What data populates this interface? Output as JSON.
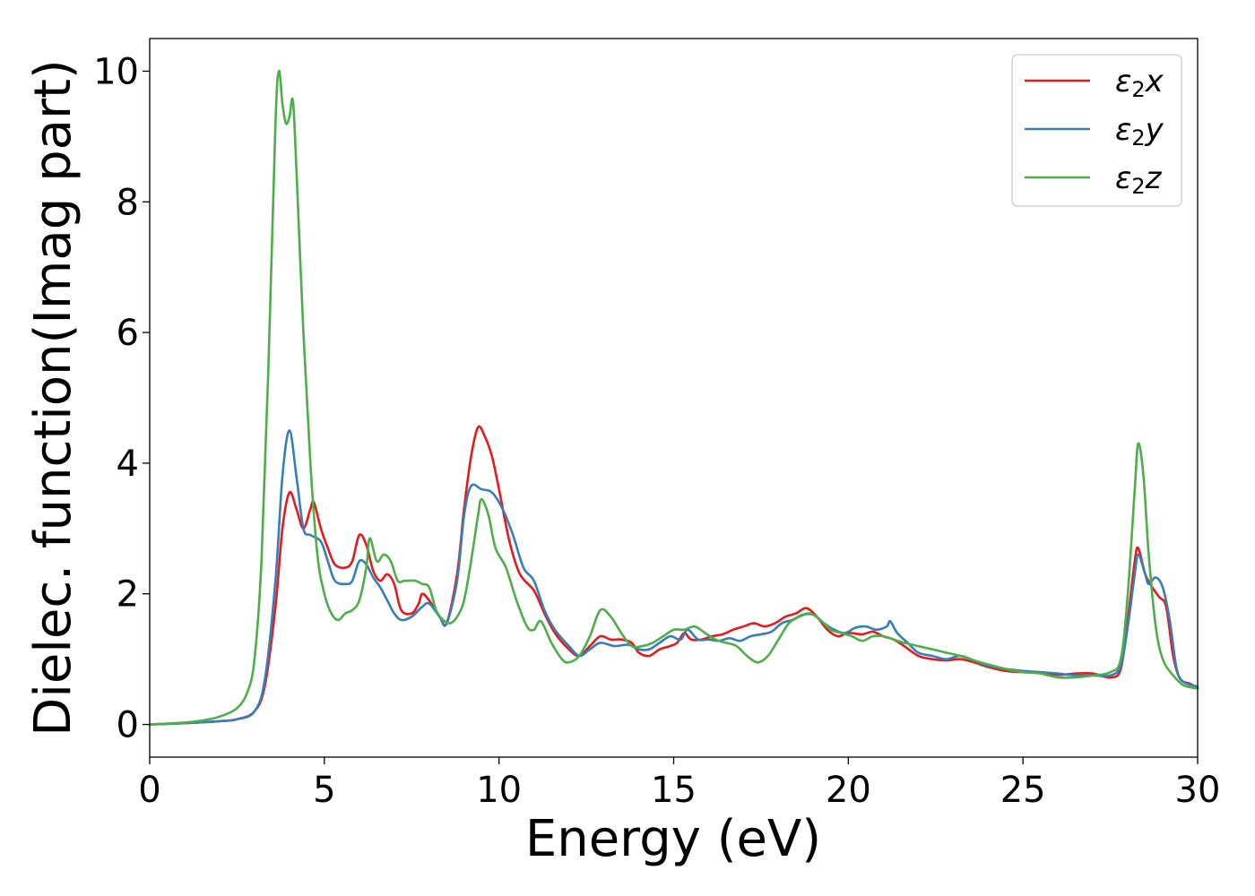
{
  "chart_data": {
    "type": "line",
    "xlabel": "Energy (eV)",
    "ylabel": "Dielec. function(Imag part)",
    "xlim": [
      0,
      30
    ],
    "ylim": [
      -0.5,
      10.5
    ],
    "xticks": [
      "0",
      "5",
      "10",
      "15",
      "20",
      "25",
      "30"
    ],
    "yticks": [
      "0",
      "2",
      "4",
      "6",
      "8",
      "10"
    ],
    "grid": false,
    "legend_position": "top-right",
    "series": [
      {
        "name": "ε₂x",
        "legend_base": "ε",
        "legend_sub": "2",
        "legend_suffix": "x",
        "color": "#e41a1c",
        "points": [
          [
            0,
            0
          ],
          [
            1,
            0.02
          ],
          [
            2,
            0.05
          ],
          [
            2.5,
            0.08
          ],
          [
            3,
            0.2
          ],
          [
            3.3,
            0.6
          ],
          [
            3.6,
            1.8
          ],
          [
            3.8,
            3.0
          ],
          [
            4.0,
            3.55
          ],
          [
            4.2,
            3.3
          ],
          [
            4.4,
            3.0
          ],
          [
            4.6,
            3.3
          ],
          [
            4.7,
            3.4
          ],
          [
            4.9,
            3.0
          ],
          [
            5.1,
            2.7
          ],
          [
            5.3,
            2.45
          ],
          [
            5.6,
            2.4
          ],
          [
            5.8,
            2.5
          ],
          [
            6.0,
            2.9
          ],
          [
            6.2,
            2.75
          ],
          [
            6.4,
            2.35
          ],
          [
            6.6,
            2.2
          ],
          [
            6.8,
            2.3
          ],
          [
            7.0,
            2.15
          ],
          [
            7.2,
            1.75
          ],
          [
            7.5,
            1.7
          ],
          [
            7.7,
            1.85
          ],
          [
            7.8,
            2.0
          ],
          [
            8.0,
            1.9
          ],
          [
            8.3,
            1.65
          ],
          [
            8.5,
            1.55
          ],
          [
            8.8,
            2.3
          ],
          [
            9.0,
            3.3
          ],
          [
            9.2,
            4.1
          ],
          [
            9.4,
            4.55
          ],
          [
            9.6,
            4.4
          ],
          [
            9.8,
            4.1
          ],
          [
            10.0,
            3.6
          ],
          [
            10.3,
            2.8
          ],
          [
            10.6,
            2.3
          ],
          [
            11.0,
            2.05
          ],
          [
            11.3,
            1.7
          ],
          [
            11.6,
            1.4
          ],
          [
            12.0,
            1.15
          ],
          [
            12.3,
            1.05
          ],
          [
            12.6,
            1.2
          ],
          [
            12.9,
            1.35
          ],
          [
            13.2,
            1.3
          ],
          [
            13.5,
            1.3
          ],
          [
            13.8,
            1.25
          ],
          [
            14.0,
            1.1
          ],
          [
            14.3,
            1.05
          ],
          [
            14.6,
            1.15
          ],
          [
            14.9,
            1.2
          ],
          [
            15.1,
            1.25
          ],
          [
            15.3,
            1.4
          ],
          [
            15.5,
            1.3
          ],
          [
            15.8,
            1.3
          ],
          [
            16.1,
            1.35
          ],
          [
            16.4,
            1.38
          ],
          [
            16.7,
            1.45
          ],
          [
            17.0,
            1.5
          ],
          [
            17.3,
            1.55
          ],
          [
            17.6,
            1.5
          ],
          [
            17.9,
            1.55
          ],
          [
            18.2,
            1.65
          ],
          [
            18.5,
            1.7
          ],
          [
            18.8,
            1.78
          ],
          [
            19.1,
            1.65
          ],
          [
            19.4,
            1.45
          ],
          [
            19.7,
            1.35
          ],
          [
            20.0,
            1.4
          ],
          [
            20.4,
            1.38
          ],
          [
            20.7,
            1.42
          ],
          [
            21.0,
            1.35
          ],
          [
            21.3,
            1.3
          ],
          [
            21.6,
            1.2
          ],
          [
            22.0,
            1.05
          ],
          [
            22.4,
            1.0
          ],
          [
            22.8,
            0.98
          ],
          [
            23.2,
            1.0
          ],
          [
            23.6,
            0.95
          ],
          [
            24.0,
            0.88
          ],
          [
            24.5,
            0.82
          ],
          [
            25.0,
            0.8
          ],
          [
            25.5,
            0.8
          ],
          [
            26.0,
            0.76
          ],
          [
            26.5,
            0.78
          ],
          [
            27.0,
            0.78
          ],
          [
            27.5,
            0.72
          ],
          [
            27.8,
            0.85
          ],
          [
            28.0,
            1.6
          ],
          [
            28.2,
            2.5
          ],
          [
            28.3,
            2.7
          ],
          [
            28.5,
            2.3
          ],
          [
            28.7,
            2.1
          ],
          [
            28.9,
            1.95
          ],
          [
            29.1,
            1.8
          ],
          [
            29.3,
            1.05
          ],
          [
            29.5,
            0.7
          ],
          [
            29.8,
            0.62
          ],
          [
            30.0,
            0.55
          ]
        ]
      },
      {
        "name": "ε₂y",
        "legend_base": "ε",
        "legend_sub": "2",
        "legend_suffix": "y",
        "color": "#377eb8",
        "points": [
          [
            0,
            0
          ],
          [
            1,
            0.02
          ],
          [
            2,
            0.05
          ],
          [
            2.5,
            0.08
          ],
          [
            3,
            0.2
          ],
          [
            3.3,
            0.7
          ],
          [
            3.6,
            2.2
          ],
          [
            3.8,
            3.8
          ],
          [
            4.0,
            4.5
          ],
          [
            4.2,
            3.8
          ],
          [
            4.4,
            3.0
          ],
          [
            4.6,
            2.9
          ],
          [
            4.9,
            2.8
          ],
          [
            5.1,
            2.5
          ],
          [
            5.3,
            2.2
          ],
          [
            5.6,
            2.15
          ],
          [
            5.8,
            2.2
          ],
          [
            6.0,
            2.5
          ],
          [
            6.2,
            2.45
          ],
          [
            6.4,
            2.25
          ],
          [
            6.6,
            2.1
          ],
          [
            6.8,
            1.9
          ],
          [
            7.0,
            1.7
          ],
          [
            7.2,
            1.6
          ],
          [
            7.5,
            1.65
          ],
          [
            7.8,
            1.8
          ],
          [
            8.0,
            1.85
          ],
          [
            8.3,
            1.65
          ],
          [
            8.5,
            1.55
          ],
          [
            8.8,
            2.2
          ],
          [
            9.0,
            3.2
          ],
          [
            9.2,
            3.65
          ],
          [
            9.5,
            3.6
          ],
          [
            9.8,
            3.55
          ],
          [
            10.1,
            3.3
          ],
          [
            10.4,
            2.9
          ],
          [
            10.7,
            2.4
          ],
          [
            11.0,
            2.2
          ],
          [
            11.3,
            1.75
          ],
          [
            11.6,
            1.45
          ],
          [
            12.0,
            1.2
          ],
          [
            12.3,
            1.05
          ],
          [
            12.6,
            1.15
          ],
          [
            12.9,
            1.25
          ],
          [
            13.3,
            1.2
          ],
          [
            13.7,
            1.22
          ],
          [
            14.0,
            1.15
          ],
          [
            14.3,
            1.15
          ],
          [
            14.6,
            1.25
          ],
          [
            14.9,
            1.35
          ],
          [
            15.2,
            1.3
          ],
          [
            15.4,
            1.45
          ],
          [
            15.7,
            1.3
          ],
          [
            16.0,
            1.3
          ],
          [
            16.3,
            1.28
          ],
          [
            16.6,
            1.32
          ],
          [
            16.9,
            1.28
          ],
          [
            17.2,
            1.35
          ],
          [
            17.5,
            1.38
          ],
          [
            17.8,
            1.42
          ],
          [
            18.1,
            1.55
          ],
          [
            18.4,
            1.6
          ],
          [
            18.7,
            1.68
          ],
          [
            19.0,
            1.68
          ],
          [
            19.3,
            1.55
          ],
          [
            19.6,
            1.45
          ],
          [
            19.9,
            1.4
          ],
          [
            20.2,
            1.48
          ],
          [
            20.5,
            1.5
          ],
          [
            20.8,
            1.45
          ],
          [
            21.1,
            1.5
          ],
          [
            21.2,
            1.58
          ],
          [
            21.4,
            1.4
          ],
          [
            21.7,
            1.25
          ],
          [
            22.0,
            1.1
          ],
          [
            22.4,
            1.05
          ],
          [
            22.8,
            1.0
          ],
          [
            23.2,
            1.05
          ],
          [
            23.6,
            0.98
          ],
          [
            24.0,
            0.9
          ],
          [
            24.5,
            0.85
          ],
          [
            25.0,
            0.82
          ],
          [
            25.5,
            0.8
          ],
          [
            26.0,
            0.78
          ],
          [
            26.5,
            0.75
          ],
          [
            27.0,
            0.75
          ],
          [
            27.5,
            0.75
          ],
          [
            27.8,
            0.9
          ],
          [
            28.0,
            1.5
          ],
          [
            28.2,
            2.3
          ],
          [
            28.3,
            2.6
          ],
          [
            28.5,
            2.3
          ],
          [
            28.6,
            2.15
          ],
          [
            28.8,
            2.25
          ],
          [
            29.0,
            2.1
          ],
          [
            29.2,
            1.6
          ],
          [
            29.4,
            0.85
          ],
          [
            29.6,
            0.65
          ],
          [
            30.0,
            0.58
          ]
        ]
      },
      {
        "name": "ε₂z",
        "legend_base": "ε",
        "legend_sub": "2",
        "legend_suffix": "z",
        "color": "#4daf4a",
        "points": [
          [
            0,
            0
          ],
          [
            1,
            0.03
          ],
          [
            1.5,
            0.06
          ],
          [
            2,
            0.12
          ],
          [
            2.5,
            0.25
          ],
          [
            2.8,
            0.5
          ],
          [
            3.0,
            1.0
          ],
          [
            3.2,
            2.5
          ],
          [
            3.4,
            5.5
          ],
          [
            3.6,
            9.2
          ],
          [
            3.7,
            10.0
          ],
          [
            3.8,
            9.5
          ],
          [
            3.9,
            9.2
          ],
          [
            4.0,
            9.3
          ],
          [
            4.1,
            9.55
          ],
          [
            4.2,
            8.5
          ],
          [
            4.4,
            6.0
          ],
          [
            4.6,
            4.0
          ],
          [
            4.8,
            2.6
          ],
          [
            5.0,
            2.0
          ],
          [
            5.2,
            1.7
          ],
          [
            5.4,
            1.6
          ],
          [
            5.6,
            1.7
          ],
          [
            5.8,
            1.75
          ],
          [
            6.0,
            1.9
          ],
          [
            6.2,
            2.4
          ],
          [
            6.3,
            2.85
          ],
          [
            6.5,
            2.5
          ],
          [
            6.7,
            2.6
          ],
          [
            6.9,
            2.5
          ],
          [
            7.1,
            2.2
          ],
          [
            7.3,
            2.2
          ],
          [
            7.6,
            2.2
          ],
          [
            7.8,
            2.15
          ],
          [
            8.0,
            2.1
          ],
          [
            8.2,
            1.75
          ],
          [
            8.4,
            1.6
          ],
          [
            8.6,
            1.55
          ],
          [
            8.8,
            1.65
          ],
          [
            9.0,
            1.9
          ],
          [
            9.2,
            2.5
          ],
          [
            9.4,
            3.2
          ],
          [
            9.5,
            3.45
          ],
          [
            9.7,
            3.2
          ],
          [
            9.9,
            2.7
          ],
          [
            10.2,
            2.4
          ],
          [
            10.5,
            1.9
          ],
          [
            10.8,
            1.5
          ],
          [
            11.0,
            1.45
          ],
          [
            11.2,
            1.58
          ],
          [
            11.5,
            1.25
          ],
          [
            11.8,
            1.0
          ],
          [
            12.0,
            0.95
          ],
          [
            12.3,
            1.05
          ],
          [
            12.6,
            1.35
          ],
          [
            12.9,
            1.75
          ],
          [
            13.2,
            1.65
          ],
          [
            13.5,
            1.4
          ],
          [
            13.8,
            1.2
          ],
          [
            14.1,
            1.2
          ],
          [
            14.4,
            1.25
          ],
          [
            14.7,
            1.35
          ],
          [
            15.0,
            1.45
          ],
          [
            15.3,
            1.45
          ],
          [
            15.6,
            1.5
          ],
          [
            15.9,
            1.4
          ],
          [
            16.2,
            1.3
          ],
          [
            16.5,
            1.25
          ],
          [
            16.8,
            1.2
          ],
          [
            17.1,
            1.05
          ],
          [
            17.4,
            0.95
          ],
          [
            17.7,
            1.05
          ],
          [
            18.0,
            1.3
          ],
          [
            18.3,
            1.55
          ],
          [
            18.6,
            1.65
          ],
          [
            18.9,
            1.7
          ],
          [
            19.2,
            1.6
          ],
          [
            19.5,
            1.45
          ],
          [
            19.8,
            1.4
          ],
          [
            20.1,
            1.35
          ],
          [
            20.4,
            1.28
          ],
          [
            20.7,
            1.35
          ],
          [
            21.0,
            1.35
          ],
          [
            21.3,
            1.3
          ],
          [
            21.6,
            1.25
          ],
          [
            22.0,
            1.2
          ],
          [
            22.4,
            1.15
          ],
          [
            22.8,
            1.1
          ],
          [
            23.2,
            1.05
          ],
          [
            23.6,
            0.98
          ],
          [
            24.0,
            0.92
          ],
          [
            24.5,
            0.85
          ],
          [
            25.0,
            0.8
          ],
          [
            25.5,
            0.78
          ],
          [
            26.0,
            0.72
          ],
          [
            26.5,
            0.72
          ],
          [
            27.0,
            0.75
          ],
          [
            27.5,
            0.8
          ],
          [
            27.8,
            1.0
          ],
          [
            28.0,
            2.0
          ],
          [
            28.2,
            3.6
          ],
          [
            28.3,
            4.3
          ],
          [
            28.45,
            3.8
          ],
          [
            28.6,
            2.6
          ],
          [
            28.8,
            1.5
          ],
          [
            29.0,
            1.0
          ],
          [
            29.3,
            0.75
          ],
          [
            29.6,
            0.6
          ],
          [
            30.0,
            0.55
          ]
        ]
      }
    ]
  }
}
